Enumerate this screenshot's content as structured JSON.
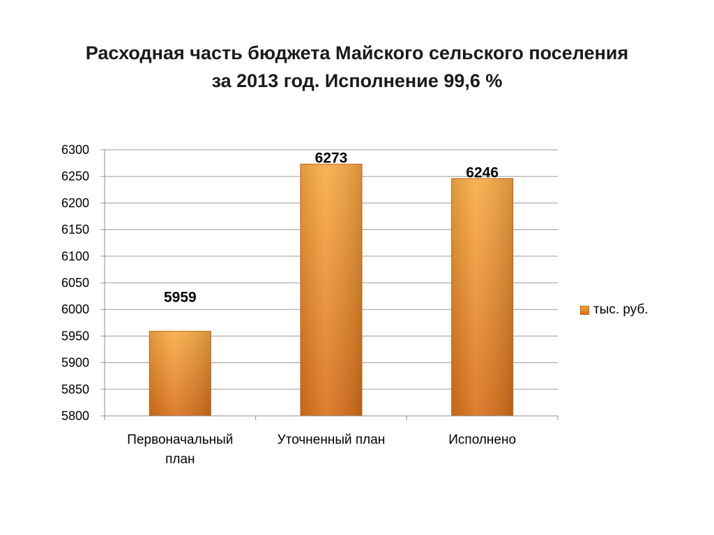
{
  "title": {
    "line1": "Расходная часть бюджета Майского сельского поселения",
    "line2": "за 2013 год. Исполнение 99,6 %"
  },
  "chart_data": {
    "type": "bar",
    "title": "Расходная часть бюджета Майского сельского поселения за 2013 год. Исполнение 99,6 %",
    "categories": [
      [
        "Первоначальный",
        "план"
      ],
      [
        "Уточненный план"
      ],
      [
        "Исполнено"
      ]
    ],
    "series": [
      {
        "name": "тыс. руб.",
        "values": [
          5959,
          6273,
          6246
        ],
        "color": "#f39a2e"
      }
    ],
    "data_labels": [
      "5959",
      "6273",
      "6246"
    ],
    "ylim": [
      5800,
      6300
    ],
    "yticks": [
      5800,
      5850,
      5900,
      5950,
      6000,
      6050,
      6100,
      6150,
      6200,
      6250,
      6300
    ],
    "xlabel": "",
    "ylabel": "",
    "grid": true,
    "legend_position": "right"
  }
}
